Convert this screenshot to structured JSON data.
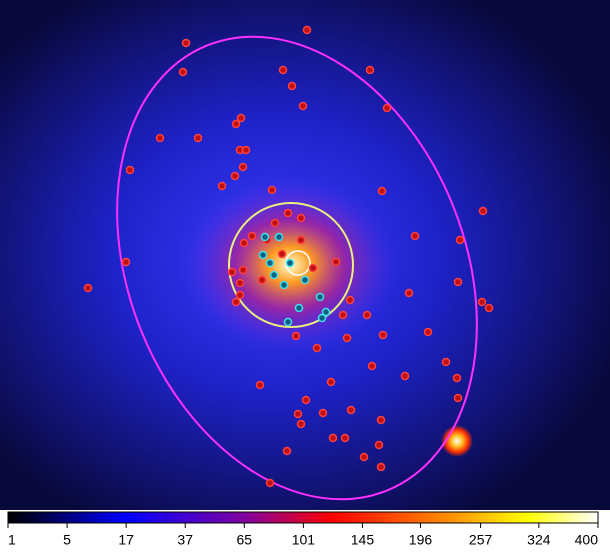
{
  "colorbar": {
    "ticks": [
      1,
      5,
      17,
      37,
      65,
      101,
      145,
      196,
      257,
      324,
      400
    ],
    "scale": "sqrt"
  }
}
